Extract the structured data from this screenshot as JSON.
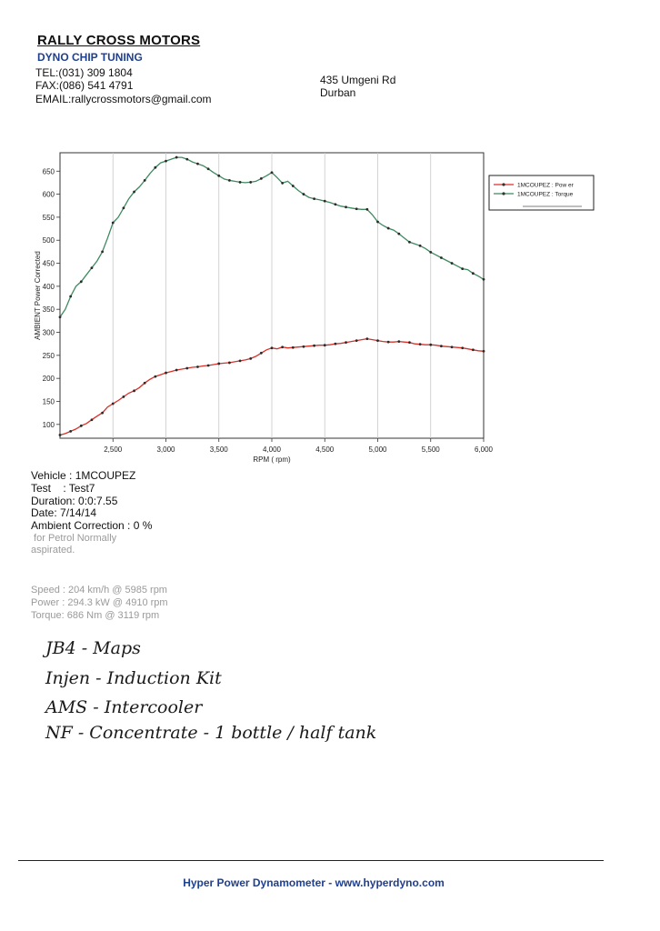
{
  "header": {
    "company": "RALLY CROSS MOTORS",
    "subtitle": "DYNO CHIP TUNING",
    "tel": "TEL:(031) 309 1804",
    "fax": "FAX:(086) 541 4791",
    "email": "EMAIL:rallycrossmotors@gmail.com",
    "address_line1": "435 Umgeni Rd",
    "address_line2": "Durban"
  },
  "chart_data": {
    "type": "line",
    "title": "",
    "xlabel": "RPM ( rpm)",
    "ylabel": "AMBIENT Power Corrected",
    "xlim": [
      2000,
      6000
    ],
    "ylim": [
      70,
      690
    ],
    "x_ticks": [
      2500,
      3000,
      3500,
      4000,
      4500,
      5000,
      5500,
      6000
    ],
    "x_tick_labels": [
      "2,500",
      "3,000",
      "3,500",
      "4,000",
      "4,500",
      "5,000",
      "5,500",
      "6,000"
    ],
    "y_ticks": [
      100,
      150,
      200,
      250,
      300,
      350,
      400,
      450,
      500,
      550,
      600,
      650
    ],
    "y_tick_labels": [
      "100",
      "150",
      "200",
      "250",
      "300",
      "350",
      "400",
      "450",
      "500",
      "550",
      "600",
      "650"
    ],
    "grid": "vertical",
    "legend_position": "top-right",
    "series": [
      {
        "name": "1MCOUPEZ : Pow er",
        "color": "#d9302a",
        "points": [
          [
            2000,
            77
          ],
          [
            2050,
            80
          ],
          [
            2100,
            85
          ],
          [
            2150,
            90
          ],
          [
            2200,
            97
          ],
          [
            2250,
            102
          ],
          [
            2300,
            110
          ],
          [
            2350,
            118
          ],
          [
            2400,
            125
          ],
          [
            2450,
            138
          ],
          [
            2500,
            145
          ],
          [
            2550,
            152
          ],
          [
            2600,
            160
          ],
          [
            2650,
            168
          ],
          [
            2700,
            173
          ],
          [
            2750,
            180
          ],
          [
            2800,
            190
          ],
          [
            2850,
            198
          ],
          [
            2900,
            204
          ],
          [
            2950,
            208
          ],
          [
            3000,
            212
          ],
          [
            3050,
            215
          ],
          [
            3100,
            218
          ],
          [
            3150,
            220
          ],
          [
            3200,
            222
          ],
          [
            3250,
            224
          ],
          [
            3300,
            225
          ],
          [
            3350,
            227
          ],
          [
            3400,
            228
          ],
          [
            3450,
            230
          ],
          [
            3500,
            232
          ],
          [
            3550,
            233
          ],
          [
            3600,
            234
          ],
          [
            3650,
            236
          ],
          [
            3700,
            238
          ],
          [
            3750,
            240
          ],
          [
            3800,
            243
          ],
          [
            3850,
            248
          ],
          [
            3900,
            255
          ],
          [
            3950,
            262
          ],
          [
            4000,
            266
          ],
          [
            4050,
            264
          ],
          [
            4100,
            268
          ],
          [
            4150,
            266
          ],
          [
            4200,
            267
          ],
          [
            4250,
            268
          ],
          [
            4300,
            269
          ],
          [
            4350,
            270
          ],
          [
            4400,
            271
          ],
          [
            4450,
            272
          ],
          [
            4500,
            272
          ],
          [
            4550,
            273
          ],
          [
            4600,
            275
          ],
          [
            4650,
            276
          ],
          [
            4700,
            278
          ],
          [
            4750,
            280
          ],
          [
            4800,
            282
          ],
          [
            4850,
            284
          ],
          [
            4900,
            286
          ],
          [
            4950,
            284
          ],
          [
            5000,
            282
          ],
          [
            5050,
            280
          ],
          [
            5100,
            279
          ],
          [
            5150,
            279
          ],
          [
            5200,
            280
          ],
          [
            5250,
            279
          ],
          [
            5300,
            278
          ],
          [
            5350,
            275
          ],
          [
            5400,
            274
          ],
          [
            5450,
            273
          ],
          [
            5500,
            273
          ],
          [
            5550,
            272
          ],
          [
            5600,
            270
          ],
          [
            5650,
            269
          ],
          [
            5700,
            268
          ],
          [
            5750,
            267
          ],
          [
            5800,
            266
          ],
          [
            5850,
            264
          ],
          [
            5900,
            262
          ],
          [
            5950,
            260
          ],
          [
            6000,
            259
          ]
        ]
      },
      {
        "name": "1MCOUPEZ : Torque",
        "color": "#3e8a5e",
        "points": [
          [
            2000,
            333
          ],
          [
            2050,
            350
          ],
          [
            2100,
            378
          ],
          [
            2150,
            400
          ],
          [
            2200,
            410
          ],
          [
            2250,
            425
          ],
          [
            2300,
            440
          ],
          [
            2350,
            455
          ],
          [
            2400,
            475
          ],
          [
            2450,
            505
          ],
          [
            2500,
            538
          ],
          [
            2550,
            550
          ],
          [
            2600,
            570
          ],
          [
            2650,
            590
          ],
          [
            2700,
            605
          ],
          [
            2750,
            616
          ],
          [
            2800,
            630
          ],
          [
            2850,
            645
          ],
          [
            2900,
            658
          ],
          [
            2950,
            668
          ],
          [
            3000,
            672
          ],
          [
            3050,
            676
          ],
          [
            3100,
            680
          ],
          [
            3150,
            680
          ],
          [
            3200,
            676
          ],
          [
            3250,
            670
          ],
          [
            3300,
            666
          ],
          [
            3350,
            662
          ],
          [
            3400,
            655
          ],
          [
            3450,
            647
          ],
          [
            3500,
            640
          ],
          [
            3550,
            633
          ],
          [
            3600,
            630
          ],
          [
            3650,
            628
          ],
          [
            3700,
            626
          ],
          [
            3750,
            625
          ],
          [
            3800,
            626
          ],
          [
            3850,
            628
          ],
          [
            3900,
            634
          ],
          [
            3950,
            640
          ],
          [
            4000,
            647
          ],
          [
            4050,
            636
          ],
          [
            4100,
            624
          ],
          [
            4150,
            628
          ],
          [
            4200,
            618
          ],
          [
            4250,
            608
          ],
          [
            4300,
            600
          ],
          [
            4350,
            593
          ],
          [
            4400,
            590
          ],
          [
            4450,
            588
          ],
          [
            4500,
            585
          ],
          [
            4550,
            582
          ],
          [
            4600,
            578
          ],
          [
            4650,
            574
          ],
          [
            4700,
            572
          ],
          [
            4750,
            570
          ],
          [
            4800,
            568
          ],
          [
            4850,
            567
          ],
          [
            4900,
            567
          ],
          [
            4950,
            555
          ],
          [
            5000,
            540
          ],
          [
            5050,
            532
          ],
          [
            5100,
            526
          ],
          [
            5150,
            522
          ],
          [
            5200,
            514
          ],
          [
            5250,
            505
          ],
          [
            5300,
            496
          ],
          [
            5350,
            492
          ],
          [
            5400,
            488
          ],
          [
            5450,
            482
          ],
          [
            5500,
            474
          ],
          [
            5550,
            468
          ],
          [
            5600,
            462
          ],
          [
            5650,
            456
          ],
          [
            5700,
            450
          ],
          [
            5750,
            444
          ],
          [
            5800,
            438
          ],
          [
            5850,
            436
          ],
          [
            5900,
            428
          ],
          [
            5950,
            422
          ],
          [
            6000,
            415
          ]
        ]
      }
    ]
  },
  "results": {
    "vehicle": "Vehicle : 1MCOUPEZ",
    "test": "Test    : Test7",
    "duration": "Duration: 0:0:7.55",
    "date": "Date: 7/14/14",
    "ambient_correction": "Ambient Correction : 0 %",
    "correction_note_1": " for Petrol Normally",
    "correction_note_2": "aspirated.",
    "speed": "Speed : 204 km/h @ 5985 rpm",
    "power": "Power : 294.3 kW @ 4910 rpm",
    "torque": "Torque: 686 Nm @ 3119 rpm"
  },
  "handwritten_notes": [
    "JB4 - Maps",
    "Injen - Induction Kit",
    "AMS - Intercooler",
    "NF - Concentrate - 1 bottle / half tank"
  ],
  "footer": {
    "text": "Hyper Power Dynamometer  -  www.hyperdyno.com"
  }
}
